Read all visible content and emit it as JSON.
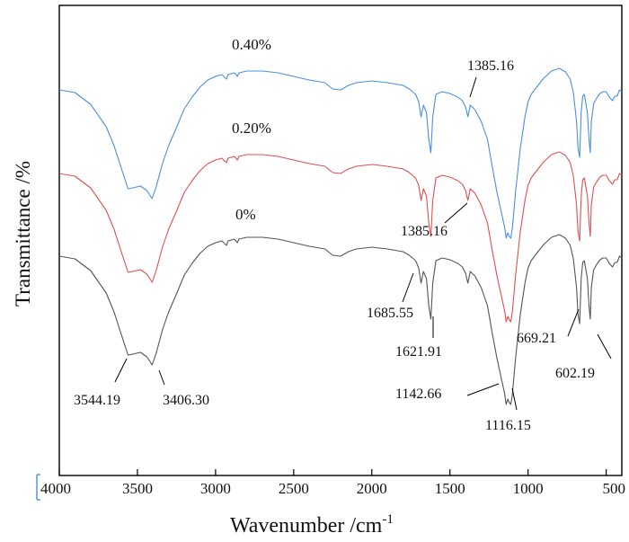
{
  "chart_data": {
    "type": "line",
    "title": "",
    "xlabel": "Wavenumber /cm",
    "xlabel_superscript": "-1",
    "ylabel": "Transmittance /%",
    "xlim": [
      4000,
      400
    ],
    "x_reversed": true,
    "x_ticks": [
      "4000",
      "3500",
      "3000",
      "2500",
      "2000",
      "1500",
      "1000",
      "500"
    ],
    "y_ticks": [],
    "grid": false,
    "legend": "none",
    "series": [
      {
        "name": "0.40%",
        "color": "#4a8fe0",
        "points": [
          [
            4000,
            0.25
          ],
          [
            3900,
            0.28
          ],
          [
            3800,
            0.41
          ],
          [
            3700,
            0.66
          ],
          [
            3650,
            0.87
          ],
          [
            3600,
            1.14
          ],
          [
            3560,
            1.35
          ],
          [
            3530,
            1.34
          ],
          [
            3480,
            1.32
          ],
          [
            3440,
            1.37
          ],
          [
            3406,
            1.46
          ],
          [
            3380,
            1.33
          ],
          [
            3340,
            1.07
          ],
          [
            3300,
            0.87
          ],
          [
            3250,
            0.67
          ],
          [
            3200,
            0.46
          ],
          [
            3150,
            0.33
          ],
          [
            3100,
            0.22
          ],
          [
            3050,
            0.14
          ],
          [
            3000,
            0.1
          ],
          [
            2960,
            0.08
          ],
          [
            2930,
            0.13
          ],
          [
            2920,
            0.08
          ],
          [
            2880,
            0.06
          ],
          [
            2860,
            0.1
          ],
          [
            2850,
            0.06
          ],
          [
            2800,
            0.04
          ],
          [
            2700,
            0.04
          ],
          [
            2600,
            0.06
          ],
          [
            2500,
            0.1
          ],
          [
            2400,
            0.14
          ],
          [
            2300,
            0.17
          ],
          [
            2250,
            0.24
          ],
          [
            2200,
            0.25
          ],
          [
            2150,
            0.2
          ],
          [
            2100,
            0.17
          ],
          [
            2000,
            0.15
          ],
          [
            1900,
            0.17
          ],
          [
            1800,
            0.2
          ],
          [
            1760,
            0.24
          ],
          [
            1720,
            0.3
          ],
          [
            1700,
            0.38
          ],
          [
            1685,
            0.55
          ],
          [
            1670,
            0.42
          ],
          [
            1650,
            0.5
          ],
          [
            1635,
            0.8
          ],
          [
            1622,
            0.95
          ],
          [
            1610,
            0.55
          ],
          [
            1590,
            0.3
          ],
          [
            1550,
            0.27
          ],
          [
            1500,
            0.29
          ],
          [
            1450,
            0.33
          ],
          [
            1420,
            0.37
          ],
          [
            1400,
            0.44
          ],
          [
            1385,
            0.55
          ],
          [
            1370,
            0.42
          ],
          [
            1340,
            0.47
          ],
          [
            1300,
            0.6
          ],
          [
            1260,
            0.8
          ],
          [
            1230,
            1.1
          ],
          [
            1200,
            1.38
          ],
          [
            1170,
            1.62
          ],
          [
            1150,
            1.78
          ],
          [
            1140,
            1.9
          ],
          [
            1130,
            1.84
          ],
          [
            1120,
            1.88
          ],
          [
            1110,
            1.9
          ],
          [
            1100,
            1.78
          ],
          [
            1080,
            1.38
          ],
          [
            1050,
            0.9
          ],
          [
            1020,
            0.55
          ],
          [
            1000,
            0.38
          ],
          [
            980,
            0.3
          ],
          [
            950,
            0.23
          ],
          [
            900,
            0.12
          ],
          [
            850,
            0.04
          ],
          [
            800,
            0.01
          ],
          [
            760,
            0.05
          ],
          [
            730,
            0.13
          ],
          [
            710,
            0.28
          ],
          [
            690,
            0.6
          ],
          [
            680,
            0.9
          ],
          [
            670,
            1.0
          ],
          [
            660,
            0.5
          ],
          [
            650,
            0.32
          ],
          [
            640,
            0.3
          ],
          [
            620,
            0.5
          ],
          [
            610,
            0.8
          ],
          [
            602,
            0.95
          ],
          [
            595,
            0.6
          ],
          [
            580,
            0.4
          ],
          [
            560,
            0.34
          ],
          [
            540,
            0.29
          ],
          [
            520,
            0.27
          ],
          [
            500,
            0.27
          ],
          [
            480,
            0.33
          ],
          [
            460,
            0.37
          ],
          [
            445,
            0.32
          ],
          [
            430,
            0.32
          ],
          [
            415,
            0.25
          ],
          [
            400,
            0.27
          ]
        ]
      },
      {
        "name": "0.20%",
        "color": "#e05050",
        "points": [
          [
            4000,
            0.25
          ],
          [
            3900,
            0.28
          ],
          [
            3800,
            0.41
          ],
          [
            3700,
            0.66
          ],
          [
            3650,
            0.87
          ],
          [
            3600,
            1.14
          ],
          [
            3560,
            1.35
          ],
          [
            3530,
            1.34
          ],
          [
            3480,
            1.32
          ],
          [
            3440,
            1.37
          ],
          [
            3406,
            1.46
          ],
          [
            3380,
            1.33
          ],
          [
            3340,
            1.07
          ],
          [
            3300,
            0.87
          ],
          [
            3250,
            0.67
          ],
          [
            3200,
            0.46
          ],
          [
            3150,
            0.33
          ],
          [
            3100,
            0.22
          ],
          [
            3050,
            0.14
          ],
          [
            3000,
            0.1
          ],
          [
            2960,
            0.08
          ],
          [
            2930,
            0.13
          ],
          [
            2920,
            0.08
          ],
          [
            2880,
            0.06
          ],
          [
            2860,
            0.1
          ],
          [
            2850,
            0.06
          ],
          [
            2800,
            0.04
          ],
          [
            2700,
            0.04
          ],
          [
            2600,
            0.06
          ],
          [
            2500,
            0.1
          ],
          [
            2400,
            0.14
          ],
          [
            2300,
            0.17
          ],
          [
            2250,
            0.24
          ],
          [
            2200,
            0.25
          ],
          [
            2150,
            0.2
          ],
          [
            2100,
            0.17
          ],
          [
            2000,
            0.15
          ],
          [
            1900,
            0.17
          ],
          [
            1800,
            0.2
          ],
          [
            1760,
            0.24
          ],
          [
            1720,
            0.3
          ],
          [
            1700,
            0.38
          ],
          [
            1685,
            0.55
          ],
          [
            1670,
            0.42
          ],
          [
            1650,
            0.5
          ],
          [
            1635,
            0.8
          ],
          [
            1622,
            0.95
          ],
          [
            1610,
            0.55
          ],
          [
            1590,
            0.3
          ],
          [
            1550,
            0.27
          ],
          [
            1500,
            0.29
          ],
          [
            1450,
            0.33
          ],
          [
            1420,
            0.37
          ],
          [
            1400,
            0.44
          ],
          [
            1385,
            0.55
          ],
          [
            1370,
            0.42
          ],
          [
            1340,
            0.47
          ],
          [
            1300,
            0.6
          ],
          [
            1260,
            0.8
          ],
          [
            1230,
            1.1
          ],
          [
            1200,
            1.38
          ],
          [
            1170,
            1.62
          ],
          [
            1150,
            1.78
          ],
          [
            1140,
            1.9
          ],
          [
            1130,
            1.84
          ],
          [
            1120,
            1.88
          ],
          [
            1110,
            1.9
          ],
          [
            1100,
            1.78
          ],
          [
            1080,
            1.38
          ],
          [
            1050,
            0.9
          ],
          [
            1020,
            0.55
          ],
          [
            1000,
            0.38
          ],
          [
            980,
            0.3
          ],
          [
            950,
            0.23
          ],
          [
            900,
            0.12
          ],
          [
            850,
            0.04
          ],
          [
            800,
            0.01
          ],
          [
            760,
            0.05
          ],
          [
            730,
            0.13
          ],
          [
            710,
            0.28
          ],
          [
            690,
            0.6
          ],
          [
            680,
            0.9
          ],
          [
            670,
            1.0
          ],
          [
            660,
            0.5
          ],
          [
            650,
            0.32
          ],
          [
            640,
            0.3
          ],
          [
            620,
            0.5
          ],
          [
            610,
            0.8
          ],
          [
            602,
            0.95
          ],
          [
            595,
            0.6
          ],
          [
            580,
            0.4
          ],
          [
            560,
            0.34
          ],
          [
            540,
            0.29
          ],
          [
            520,
            0.27
          ],
          [
            500,
            0.27
          ],
          [
            480,
            0.33
          ],
          [
            460,
            0.37
          ],
          [
            445,
            0.32
          ],
          [
            430,
            0.32
          ],
          [
            415,
            0.25
          ],
          [
            400,
            0.27
          ]
        ]
      },
      {
        "name": "0%",
        "color": "#555555",
        "points": [
          [
            4000,
            0.25
          ],
          [
            3900,
            0.28
          ],
          [
            3800,
            0.41
          ],
          [
            3700,
            0.66
          ],
          [
            3650,
            0.87
          ],
          [
            3600,
            1.14
          ],
          [
            3560,
            1.35
          ],
          [
            3530,
            1.34
          ],
          [
            3480,
            1.32
          ],
          [
            3440,
            1.37
          ],
          [
            3406,
            1.46
          ],
          [
            3380,
            1.33
          ],
          [
            3340,
            1.07
          ],
          [
            3300,
            0.87
          ],
          [
            3250,
            0.67
          ],
          [
            3200,
            0.46
          ],
          [
            3150,
            0.33
          ],
          [
            3100,
            0.22
          ],
          [
            3050,
            0.14
          ],
          [
            3000,
            0.1
          ],
          [
            2960,
            0.08
          ],
          [
            2930,
            0.13
          ],
          [
            2920,
            0.08
          ],
          [
            2880,
            0.06
          ],
          [
            2860,
            0.1
          ],
          [
            2850,
            0.06
          ],
          [
            2800,
            0.04
          ],
          [
            2700,
            0.04
          ],
          [
            2600,
            0.06
          ],
          [
            2500,
            0.1
          ],
          [
            2400,
            0.14
          ],
          [
            2300,
            0.17
          ],
          [
            2250,
            0.24
          ],
          [
            2200,
            0.25
          ],
          [
            2150,
            0.2
          ],
          [
            2100,
            0.17
          ],
          [
            2000,
            0.15
          ],
          [
            1900,
            0.17
          ],
          [
            1800,
            0.2
          ],
          [
            1760,
            0.24
          ],
          [
            1720,
            0.3
          ],
          [
            1700,
            0.38
          ],
          [
            1685,
            0.55
          ],
          [
            1670,
            0.42
          ],
          [
            1650,
            0.5
          ],
          [
            1635,
            0.8
          ],
          [
            1622,
            0.95
          ],
          [
            1610,
            0.55
          ],
          [
            1590,
            0.3
          ],
          [
            1550,
            0.27
          ],
          [
            1500,
            0.29
          ],
          [
            1450,
            0.33
          ],
          [
            1420,
            0.37
          ],
          [
            1400,
            0.44
          ],
          [
            1385,
            0.55
          ],
          [
            1370,
            0.42
          ],
          [
            1340,
            0.47
          ],
          [
            1300,
            0.6
          ],
          [
            1260,
            0.8
          ],
          [
            1230,
            1.1
          ],
          [
            1200,
            1.38
          ],
          [
            1170,
            1.62
          ],
          [
            1150,
            1.78
          ],
          [
            1140,
            1.9
          ],
          [
            1130,
            1.84
          ],
          [
            1120,
            1.88
          ],
          [
            1110,
            1.9
          ],
          [
            1100,
            1.78
          ],
          [
            1080,
            1.38
          ],
          [
            1050,
            0.9
          ],
          [
            1020,
            0.55
          ],
          [
            1000,
            0.38
          ],
          [
            980,
            0.3
          ],
          [
            950,
            0.23
          ],
          [
            900,
            0.12
          ],
          [
            850,
            0.04
          ],
          [
            800,
            0.01
          ],
          [
            760,
            0.05
          ],
          [
            730,
            0.13
          ],
          [
            710,
            0.28
          ],
          [
            690,
            0.6
          ],
          [
            680,
            0.9
          ],
          [
            670,
            1.0
          ],
          [
            660,
            0.5
          ],
          [
            650,
            0.32
          ],
          [
            640,
            0.3
          ],
          [
            620,
            0.5
          ],
          [
            610,
            0.8
          ],
          [
            602,
            0.95
          ],
          [
            595,
            0.6
          ],
          [
            580,
            0.4
          ],
          [
            560,
            0.34
          ],
          [
            540,
            0.29
          ],
          [
            520,
            0.27
          ],
          [
            500,
            0.27
          ],
          [
            480,
            0.33
          ],
          [
            460,
            0.37
          ],
          [
            445,
            0.32
          ],
          [
            430,
            0.32
          ],
          [
            415,
            0.25
          ],
          [
            400,
            0.27
          ]
        ]
      }
    ],
    "annotations": [
      {
        "text": "1385.16",
        "series": "0.40%",
        "x": 1385
      },
      {
        "text": "1385.16",
        "series": "0.20%",
        "x": 1385
      },
      {
        "text": "1685.55",
        "series": "0%",
        "x": 1685
      },
      {
        "text": "1621.91",
        "series": "0%",
        "x": 1622
      },
      {
        "text": "3544.19",
        "series": "0%",
        "x": 3544
      },
      {
        "text": "3406.30",
        "series": "0%",
        "x": 3406
      },
      {
        "text": "1142.66",
        "series": "0%",
        "x": 1142
      },
      {
        "text": "1116.15",
        "series": "0%",
        "x": 1116
      },
      {
        "text": "669.21",
        "series": "0%",
        "x": 669
      },
      {
        "text": "602.19",
        "series": "0%",
        "x": 602
      }
    ]
  }
}
